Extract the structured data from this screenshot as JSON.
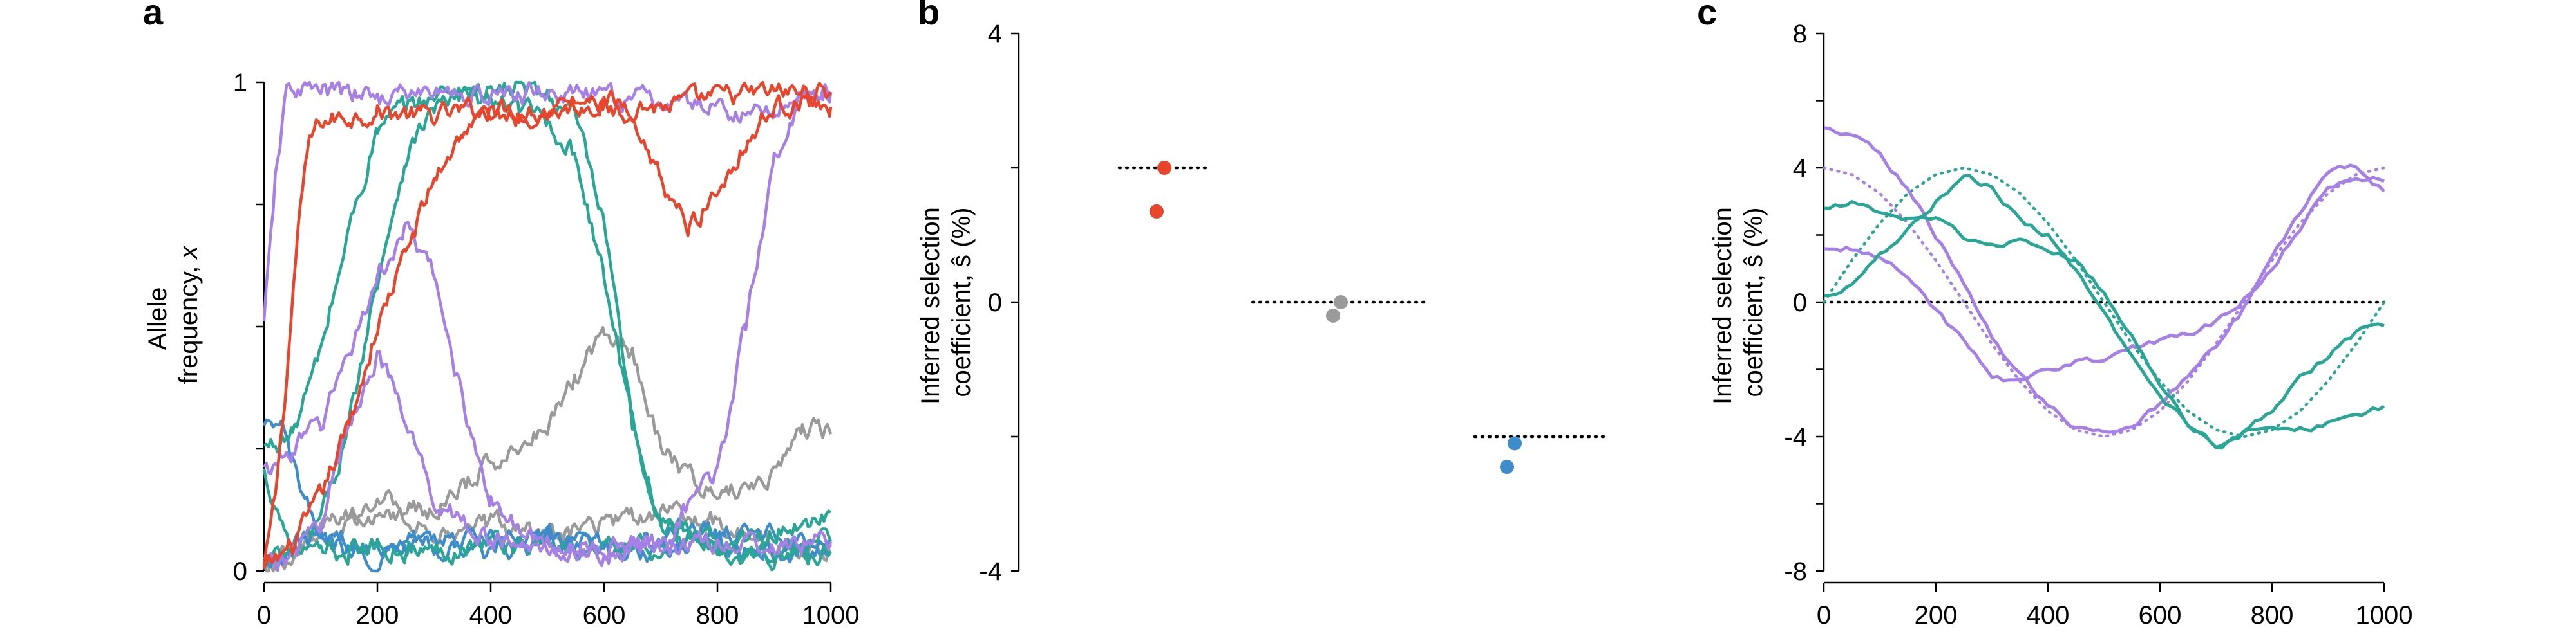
{
  "colors": {
    "red": "#e8452c",
    "teal": "#2aa697",
    "purple": "#a680e6",
    "gray": "#9a9a9a",
    "blue": "#3d8ccb",
    "black": "#000000"
  },
  "chart_data": [
    {
      "panel": "a",
      "type": "line",
      "ylabel": "Allele\nfrequency, x",
      "xlim": [
        0,
        1000
      ],
      "ylim": [
        0,
        1
      ],
      "xticks": [
        "0",
        "200",
        "400",
        "600",
        "800",
        "1000"
      ],
      "yticks": [
        "0",
        "1"
      ],
      "series": [
        {
          "color": "red",
          "x": [
            0,
            20,
            40,
            60,
            80,
            100,
            150,
            200,
            300,
            400,
            500,
            600,
            700,
            800,
            900,
            1000
          ],
          "y": [
            0.0,
            0.15,
            0.4,
            0.7,
            0.88,
            0.92,
            0.93,
            0.94,
            0.93,
            0.95,
            0.94,
            0.96,
            0.95,
            0.97,
            0.98,
            0.98
          ]
        },
        {
          "color": "red",
          "x": [
            0,
            50,
            100,
            150,
            200,
            250,
            300,
            350,
            400,
            450,
            500,
            550,
            600,
            650,
            700,
            750,
            800,
            850,
            900,
            950,
            1000
          ],
          "y": [
            0.0,
            0.05,
            0.15,
            0.3,
            0.5,
            0.65,
            0.8,
            0.9,
            0.94,
            0.93,
            0.95,
            0.96,
            0.95,
            0.9,
            0.8,
            0.7,
            0.78,
            0.88,
            0.95,
            0.96,
            0.95
          ]
        },
        {
          "color": "teal",
          "x": [
            0,
            50,
            100,
            150,
            200,
            250,
            300,
            350,
            400,
            450,
            500,
            550,
            600,
            650,
            700,
            800,
            900,
            1000
          ],
          "y": [
            0.25,
            0.28,
            0.45,
            0.7,
            0.9,
            0.95,
            0.97,
            0.99,
            0.98,
            0.99,
            0.97,
            0.93,
            0.7,
            0.3,
            0.1,
            0.05,
            0.04,
            0.06
          ]
        },
        {
          "color": "teal",
          "x": [
            0,
            50,
            100,
            150,
            200,
            250,
            300,
            350,
            400,
            450,
            500,
            550,
            600,
            650,
            700,
            800,
            900,
            1000
          ],
          "y": [
            0.02,
            0.03,
            0.1,
            0.3,
            0.6,
            0.85,
            0.95,
            0.97,
            0.96,
            0.95,
            0.92,
            0.85,
            0.6,
            0.3,
            0.1,
            0.05,
            0.03,
            0.04
          ]
        },
        {
          "color": "teal",
          "x": [
            0,
            50,
            100,
            150,
            200,
            300,
            400,
            500,
            600,
            700,
            800,
            900,
            1000
          ],
          "y": [
            0.2,
            0.05,
            0.03,
            0.04,
            0.05,
            0.04,
            0.06,
            0.05,
            0.04,
            0.05,
            0.06,
            0.08,
            0.12
          ]
        },
        {
          "color": "purple",
          "x": [
            0,
            20,
            40,
            60,
            100,
            200,
            300,
            400,
            500,
            600,
            700,
            800,
            850,
            900,
            950,
            1000
          ],
          "y": [
            0.5,
            0.8,
            0.98,
            0.99,
            0.98,
            0.97,
            0.98,
            0.97,
            0.98,
            0.97,
            0.96,
            0.95,
            0.93,
            0.95,
            0.97,
            0.98
          ]
        },
        {
          "color": "purple",
          "x": [
            0,
            50,
            100,
            150,
            200,
            250,
            300,
            350,
            400,
            450,
            500,
            600,
            700,
            800,
            900,
            1000
          ],
          "y": [
            0.2,
            0.25,
            0.3,
            0.45,
            0.6,
            0.7,
            0.6,
            0.35,
            0.15,
            0.08,
            0.05,
            0.04,
            0.05,
            0.06,
            0.05,
            0.06
          ]
        },
        {
          "color": "purple",
          "x": [
            0,
            50,
            100,
            150,
            200,
            250,
            300,
            400,
            500,
            600,
            700,
            800,
            850,
            900,
            950,
            1000
          ],
          "y": [
            0.02,
            0.03,
            0.1,
            0.3,
            0.45,
            0.3,
            0.15,
            0.06,
            0.04,
            0.05,
            0.06,
            0.2,
            0.5,
            0.85,
            0.97,
            0.98
          ]
        },
        {
          "color": "gray",
          "x": [
            0,
            100,
            200,
            300,
            400,
            500,
            550,
            600,
            650,
            700,
            800,
            900,
            950,
            1000
          ],
          "y": [
            0.0,
            0.08,
            0.15,
            0.12,
            0.22,
            0.3,
            0.4,
            0.5,
            0.45,
            0.25,
            0.15,
            0.2,
            0.3,
            0.28
          ]
        },
        {
          "color": "gray",
          "x": [
            0,
            100,
            200,
            300,
            400,
            500,
            600,
            700,
            800,
            900,
            1000
          ],
          "y": [
            0.0,
            0.05,
            0.12,
            0.08,
            0.1,
            0.07,
            0.1,
            0.12,
            0.1,
            0.06,
            0.04
          ]
        },
        {
          "color": "blue",
          "x": [
            0,
            30,
            60,
            100,
            150,
            200,
            300,
            400,
            500,
            600,
            700,
            800,
            900,
            1000
          ],
          "y": [
            0.28,
            0.3,
            0.18,
            0.06,
            0.04,
            0.03,
            0.05,
            0.04,
            0.06,
            0.05,
            0.04,
            0.05,
            0.04,
            0.05
          ]
        },
        {
          "color": "blue",
          "x": [
            0,
            50,
            100,
            200,
            300,
            400,
            500,
            600,
            700,
            800,
            900,
            1000
          ],
          "y": [
            0.02,
            0.05,
            0.07,
            0.05,
            0.08,
            0.06,
            0.07,
            0.05,
            0.06,
            0.08,
            0.07,
            0.06
          ]
        }
      ]
    },
    {
      "panel": "b",
      "type": "scatter",
      "ylabel": "Inferred selection\ncoefficient, ŝ (%)",
      "ylim": [
        -4,
        4
      ],
      "yticks": [
        "-4",
        "0",
        "4"
      ],
      "groups": [
        {
          "color": "red",
          "true_value": 2.0,
          "points": [
            2.0,
            1.35
          ]
        },
        {
          "color": "gray",
          "true_value": 0.0,
          "points": [
            0.0,
            -0.2
          ]
        },
        {
          "color": "blue",
          "true_value": -2.0,
          "points": [
            -2.1,
            -2.45
          ]
        }
      ]
    },
    {
      "panel": "c",
      "type": "line",
      "ylabel": "Inferred selection\ncoefficient, ŝ (%)",
      "xlim": [
        0,
        1000
      ],
      "ylim": [
        -8,
        8
      ],
      "xticks": [
        "0",
        "200",
        "400",
        "600",
        "800",
        "1000"
      ],
      "yticks": [
        "-8",
        "-4",
        "0",
        "4",
        "8"
      ],
      "true_curves": [
        {
          "color": "purple",
          "label": "4cos",
          "x": [
            0,
            50,
            100,
            150,
            200,
            250,
            300,
            350,
            400,
            450,
            500,
            550,
            600,
            650,
            700,
            750,
            800,
            850,
            900,
            950,
            1000
          ],
          "y": [
            4.0,
            3.8,
            3.24,
            2.35,
            1.24,
            0.0,
            -1.24,
            -2.35,
            -3.24,
            -3.8,
            -4.0,
            -3.8,
            -3.24,
            -2.35,
            -1.24,
            0.0,
            1.24,
            2.35,
            3.24,
            3.8,
            4.0
          ]
        },
        {
          "color": "teal",
          "label": "4sin",
          "x": [
            0,
            50,
            100,
            150,
            200,
            250,
            300,
            350,
            400,
            450,
            500,
            550,
            600,
            650,
            700,
            750,
            800,
            850,
            900,
            950,
            1000
          ],
          "y": [
            0.0,
            1.24,
            2.35,
            3.24,
            3.8,
            4.0,
            3.8,
            3.24,
            2.35,
            1.24,
            0.0,
            -1.24,
            -2.35,
            -3.24,
            -3.8,
            -4.0,
            -3.8,
            -3.24,
            -2.35,
            -1.24,
            0.0
          ]
        }
      ],
      "series": [
        {
          "color": "purple",
          "x": [
            0,
            50,
            100,
            150,
            200,
            250,
            300,
            350,
            400,
            450,
            500,
            550,
            600,
            650,
            700,
            750,
            800,
            850,
            900,
            950,
            1000
          ],
          "y": [
            5.2,
            5.0,
            4.4,
            3.4,
            2.0,
            0.6,
            -1.0,
            -2.2,
            -3.1,
            -3.7,
            -3.8,
            -3.6,
            -3.0,
            -2.2,
            -1.3,
            -0.2,
            1.2,
            2.6,
            3.9,
            4.0,
            3.3
          ]
        },
        {
          "color": "purple",
          "x": [
            0,
            50,
            100,
            150,
            200,
            250,
            300,
            350,
            400,
            450,
            500,
            550,
            600,
            650,
            700,
            750,
            800,
            850,
            900,
            950,
            1000
          ],
          "y": [
            1.6,
            1.6,
            1.3,
            0.8,
            -0.2,
            -1.2,
            -2.2,
            -2.4,
            -2.0,
            -1.7,
            -1.7,
            -1.4,
            -1.2,
            -1.0,
            -0.6,
            0.1,
            1.0,
            2.2,
            3.4,
            3.7,
            3.6
          ]
        },
        {
          "color": "teal",
          "x": [
            0,
            50,
            100,
            150,
            200,
            250,
            300,
            350,
            400,
            450,
            500,
            550,
            600,
            650,
            700,
            750,
            800,
            850,
            900,
            950,
            1000
          ],
          "y": [
            2.8,
            3.0,
            2.6,
            2.4,
            2.6,
            2.0,
            1.8,
            1.8,
            1.6,
            1.3,
            0.3,
            -1.0,
            -2.4,
            -3.6,
            -4.4,
            -3.9,
            -3.8,
            -3.8,
            -3.6,
            -3.4,
            -3.1
          ]
        },
        {
          "color": "teal",
          "x": [
            0,
            50,
            100,
            150,
            200,
            250,
            300,
            350,
            400,
            450,
            500,
            550,
            600,
            650,
            700,
            750,
            800,
            850,
            900,
            950,
            1000
          ],
          "y": [
            0.2,
            0.6,
            1.4,
            2.2,
            3.0,
            3.8,
            3.4,
            2.4,
            2.0,
            1.0,
            -0.4,
            -1.6,
            -2.8,
            -3.6,
            -4.3,
            -3.9,
            -3.2,
            -2.3,
            -1.6,
            -0.9,
            -0.7
          ]
        }
      ]
    }
  ]
}
